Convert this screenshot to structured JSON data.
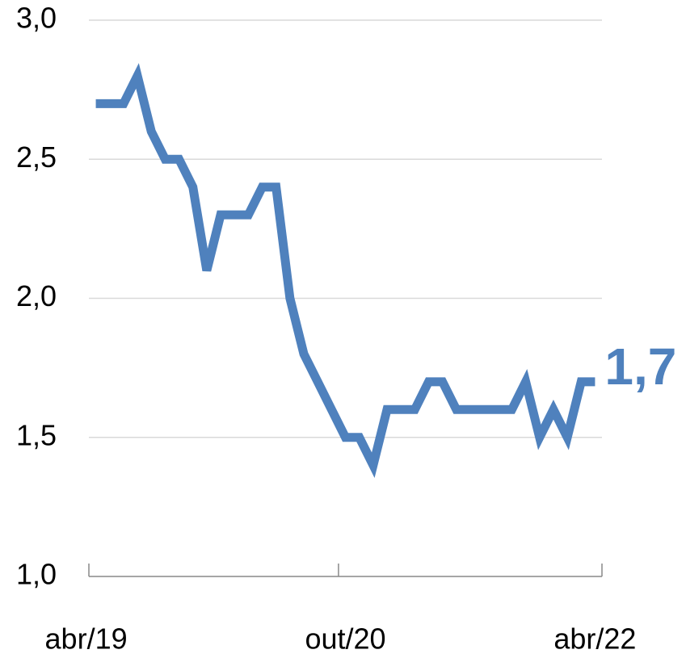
{
  "chart_data": {
    "type": "line",
    "categories": [
      "abr/19",
      null,
      null,
      null,
      null,
      null,
      null,
      null,
      null,
      null,
      null,
      null,
      null,
      null,
      null,
      null,
      null,
      null,
      "out/20",
      null,
      null,
      null,
      null,
      null,
      null,
      null,
      null,
      null,
      null,
      null,
      null,
      null,
      null,
      null,
      null,
      null,
      "abr/22"
    ],
    "series": [
      {
        "color": "#4f81bd",
        "values": [
          2.7,
          2.7,
          2.7,
          2.8,
          2.6,
          2.5,
          2.5,
          2.4,
          2.1,
          2.3,
          2.3,
          2.3,
          2.4,
          2.4,
          2.0,
          1.8,
          1.7,
          1.6,
          1.5,
          1.5,
          1.4,
          1.6,
          1.6,
          1.6,
          1.7,
          1.7,
          1.6,
          1.6,
          1.6,
          1.6,
          1.6,
          1.7,
          1.5,
          1.6,
          1.5,
          1.7,
          1.7
        ],
        "value_labels": [
          null,
          null,
          null,
          null,
          null,
          null,
          null,
          null,
          null,
          null,
          null,
          null,
          null,
          null,
          null,
          null,
          null,
          null,
          null,
          null,
          null,
          null,
          null,
          null,
          null,
          null,
          null,
          null,
          null,
          null,
          null,
          null,
          null,
          null,
          null,
          null,
          "1,7"
        ]
      }
    ],
    "ylim": [
      1.0,
      3.0
    ],
    "yticks": [
      {
        "value": 1.0,
        "label": "1,0"
      },
      {
        "value": 1.5,
        "label": "1,5"
      },
      {
        "value": 2.0,
        "label": "2,0"
      },
      {
        "value": 2.5,
        "label": "2,5"
      },
      {
        "value": 3.0,
        "label": "3,0"
      }
    ],
    "grid": true
  }
}
